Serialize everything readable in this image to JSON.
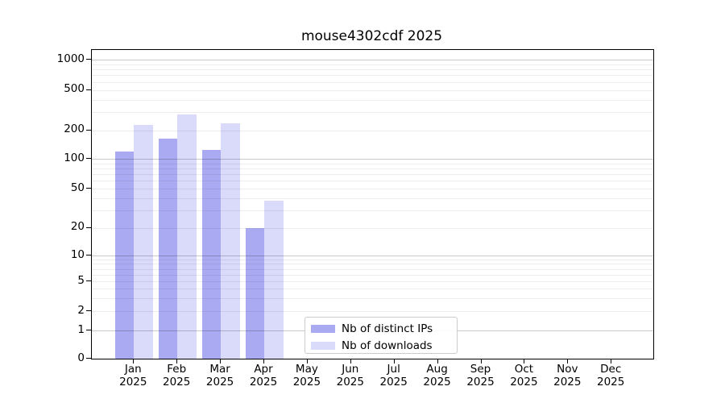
{
  "chart_data": {
    "type": "bar",
    "title": "mouse4302cdf 2025",
    "months": [
      "Jan",
      "Feb",
      "Mar",
      "Apr",
      "May",
      "Jun",
      "Jul",
      "Aug",
      "Sep",
      "Oct",
      "Nov",
      "Dec"
    ],
    "year": "2025",
    "series": [
      {
        "key": "distinct-ips",
        "name": "Nb of distinct IPs",
        "color": "#aaaaf2",
        "values": [
          120,
          163,
          125,
          20,
          0,
          0,
          0,
          0,
          0,
          0,
          0,
          0
        ]
      },
      {
        "key": "downloads",
        "name": "Nb of downloads",
        "color": "#dadafa",
        "values": [
          225,
          285,
          232,
          38,
          0,
          0,
          0,
          0,
          0,
          0,
          0,
          0
        ]
      }
    ],
    "y_ticks": [
      0,
      1,
      2,
      5,
      10,
      20,
      50,
      100,
      200,
      500,
      1000
    ],
    "y_minor_gridlines": [
      3,
      4,
      6,
      7,
      8,
      9,
      30,
      40,
      60,
      70,
      80,
      90,
      300,
      400,
      600,
      700,
      800,
      900
    ],
    "y_scale": "symlog",
    "ylim": [
      0,
      1260
    ],
    "grid": true,
    "legend_position": "lower-center",
    "colors": {
      "spine": "#000000",
      "major_gridline": "#c9c9c9",
      "minor_gridline": "#ededed",
      "legend_border": "#cccccc"
    }
  }
}
